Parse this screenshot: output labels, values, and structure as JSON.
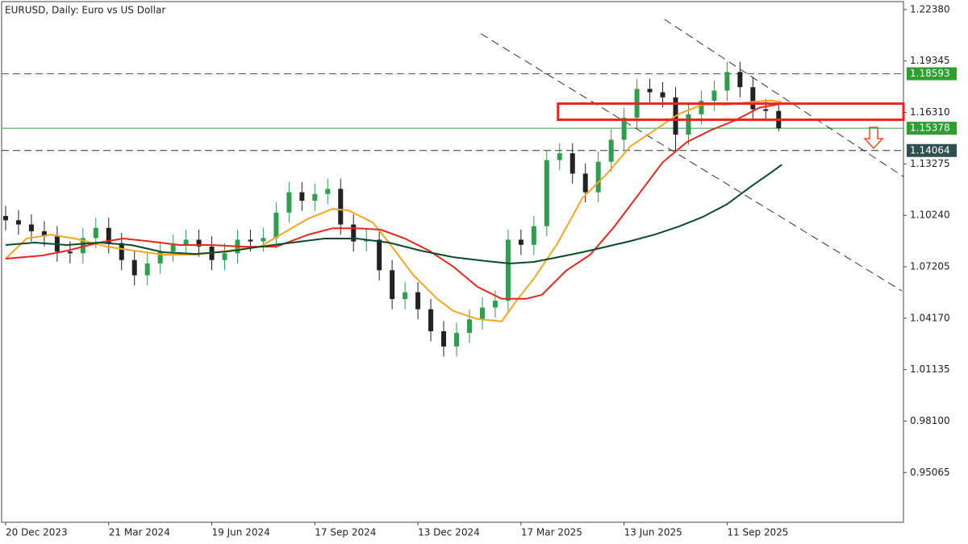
{
  "chart_data": {
    "type": "candlestick",
    "title": "EURUSD, Daily:  Euro vs US Dollar",
    "up_color": "#2e9e4f",
    "down_color": "#222222",
    "x": [
      0,
      8,
      16,
      24,
      32,
      40,
      48,
      56,
      64,
      72,
      80,
      88,
      96,
      104,
      112,
      120,
      128,
      136,
      144,
      152,
      160,
      168,
      176,
      184,
      192,
      200,
      208,
      216,
      224,
      232,
      240,
      248,
      256,
      264,
      272,
      280,
      288,
      296,
      304,
      312,
      320,
      328,
      336,
      344,
      352,
      360,
      368,
      376,
      384,
      392,
      400,
      408,
      416,
      424,
      432,
      440,
      448,
      456,
      464,
      472,
      480
    ],
    "open": [
      1.102,
      1.0995,
      1.097,
      1.093,
      1.09,
      1.081,
      1.08,
      1.089,
      1.095,
      1.086,
      1.076,
      1.067,
      1.074,
      1.081,
      1.085,
      1.088,
      1.084,
      1.076,
      1.08,
      1.088,
      1.087,
      1.089,
      1.104,
      1.116,
      1.111,
      1.115,
      1.118,
      1.097,
      1.087,
      1.088,
      1.07,
      1.053,
      1.057,
      1.047,
      1.034,
      1.025,
      1.033,
      1.041,
      1.048,
      1.052,
      1.088,
      1.085,
      1.096,
      1.135,
      1.139,
      1.127,
      1.116,
      1.134,
      1.147,
      1.16,
      1.177,
      1.175,
      1.172,
      1.15,
      1.162,
      1.17,
      1.176,
      1.187,
      1.178,
      1.165,
      1.164
    ],
    "high": [
      1.108,
      1.1055,
      1.103,
      1.099,
      1.096,
      1.087,
      1.095,
      1.101,
      1.101,
      1.092,
      1.082,
      1.08,
      1.087,
      1.091,
      1.094,
      1.094,
      1.09,
      1.086,
      1.094,
      1.094,
      1.095,
      1.11,
      1.122,
      1.122,
      1.121,
      1.124,
      1.124,
      1.103,
      1.094,
      1.094,
      1.076,
      1.063,
      1.063,
      1.053,
      1.04,
      1.039,
      1.047,
      1.054,
      1.058,
      1.094,
      1.094,
      1.102,
      1.141,
      1.145,
      1.145,
      1.133,
      1.14,
      1.153,
      1.166,
      1.183,
      1.183,
      1.181,
      1.178,
      1.168,
      1.176,
      1.182,
      1.193,
      1.193,
      1.184,
      1.171,
      1.17
    ],
    "low": [
      1.0935,
      1.091,
      1.087,
      1.084,
      1.075,
      1.074,
      1.074,
      1.083,
      1.08,
      1.07,
      1.061,
      1.061,
      1.068,
      1.075,
      1.079,
      1.078,
      1.07,
      1.07,
      1.074,
      1.081,
      1.081,
      1.083,
      1.098,
      1.105,
      1.105,
      1.109,
      1.091,
      1.081,
      1.081,
      1.064,
      1.047,
      1.047,
      1.041,
      1.028,
      1.019,
      1.019,
      1.027,
      1.035,
      1.042,
      1.046,
      1.079,
      1.079,
      1.09,
      1.129,
      1.121,
      1.11,
      1.11,
      1.128,
      1.141,
      1.154,
      1.169,
      1.166,
      1.14,
      1.144,
      1.156,
      1.164,
      1.17,
      1.172,
      1.159,
      1.158,
      1.152
    ],
    "close": [
      1.0995,
      1.097,
      1.093,
      1.09,
      1.081,
      1.08,
      1.089,
      1.095,
      1.086,
      1.076,
      1.067,
      1.074,
      1.081,
      1.085,
      1.088,
      1.084,
      1.076,
      1.08,
      1.088,
      1.087,
      1.089,
      1.104,
      1.116,
      1.111,
      1.115,
      1.118,
      1.097,
      1.087,
      1.088,
      1.07,
      1.053,
      1.057,
      1.047,
      1.034,
      1.025,
      1.033,
      1.041,
      1.048,
      1.052,
      1.088,
      1.085,
      1.096,
      1.135,
      1.139,
      1.127,
      1.116,
      1.134,
      1.147,
      1.16,
      1.177,
      1.175,
      1.172,
      1.15,
      1.162,
      1.17,
      1.176,
      1.187,
      1.178,
      1.165,
      1.164,
      1.1538
    ],
    "moving_averages": [
      {
        "color": "#f5a623",
        "x": [
          0,
          13,
          28,
          43,
          63,
          80,
          98,
          118,
          138,
          158,
          175,
          188,
          203,
          213,
          228,
          238,
          253,
          268,
          278,
          293,
          308,
          318,
          328,
          343,
          358,
          373,
          388,
          403,
          418,
          433,
          448,
          463,
          475,
          482
        ],
        "values": [
          1.0768,
          1.0887,
          1.091,
          1.0887,
          1.0839,
          1.0815,
          1.0792,
          1.0792,
          1.0815,
          1.0839,
          1.0934,
          1.1005,
          1.1062,
          1.1053,
          1.0981,
          1.0863,
          1.0673,
          1.0531,
          1.046,
          1.0412,
          1.0398,
          1.0531,
          1.065,
          1.0863,
          1.1124,
          1.1266,
          1.1432,
          1.1527,
          1.1622,
          1.1678,
          1.1678,
          1.1693,
          1.1702,
          1.1693
        ]
      },
      {
        "color": "#e8261e",
        "x": [
          0,
          23,
          38,
          58,
          73,
          88,
          108,
          128,
          148,
          168,
          188,
          203,
          218,
          233,
          248,
          263,
          278,
          293,
          308,
          323,
          333,
          348,
          363,
          378,
          393,
          408,
          423,
          438,
          453,
          468,
          482
        ],
        "values": [
          1.0768,
          1.0787,
          1.0815,
          1.0863,
          1.0887,
          1.0872,
          1.0849,
          1.0849,
          1.0839,
          1.0839,
          1.091,
          1.0948,
          1.0948,
          1.0939,
          1.0887,
          1.0815,
          1.0721,
          1.0602,
          1.0531,
          1.0531,
          1.0555,
          1.0697,
          1.0792,
          1.0958,
          1.1147,
          1.1337,
          1.1456,
          1.1527,
          1.1584,
          1.1659,
          1.1683
        ]
      },
      {
        "color": "#0b4a2a",
        "x": [
          0,
          18,
          38,
          58,
          78,
          98,
          118,
          138,
          158,
          178,
          198,
          218,
          238,
          258,
          278,
          298,
          313,
          328,
          343,
          358,
          373,
          388,
          403,
          418,
          433,
          448,
          463,
          475,
          482
        ],
        "values": [
          1.0849,
          1.0863,
          1.0849,
          1.0863,
          1.0849,
          1.0806,
          1.0796,
          1.0811,
          1.0839,
          1.0863,
          1.0887,
          1.0887,
          1.0863,
          1.0815,
          1.0777,
          1.0754,
          1.074,
          1.0749,
          1.0777,
          1.0806,
          1.0839,
          1.0872,
          1.091,
          1.0958,
          1.1015,
          1.109,
          1.1195,
          1.1275,
          1.1323
        ]
      }
    ],
    "levels": [
      {
        "value": 1.18593,
        "color": "#2e7d32",
        "dashed": true,
        "badge": "#2e9e2e"
      },
      {
        "value": 1.15378,
        "color": "#2e9e4f",
        "dashed": false,
        "badge": "#2e9e2e"
      },
      {
        "value": 1.14064,
        "color": "#333333",
        "dashed": true,
        "badge": "#2f4f4f"
      }
    ],
    "zone": {
      "x_start": 343,
      "top": 1.1683,
      "bottom": 1.1588,
      "color": "#e8261e"
    },
    "trendlines": [
      {
        "x": [
          295,
          556.5
        ],
        "y": [
          1.2096,
          1.0578
        ]
      },
      {
        "x": [
          409,
          557.5
        ],
        "y": [
          1.2181,
          1.1252
        ]
      }
    ],
    "xlim": [
      -2.5,
      557.5
    ],
    "ylim": [
      0.9213,
      1.2285
    ],
    "xticks": [
      {
        "value": 0,
        "label": "20 Dec 2023"
      },
      {
        "value": 64,
        "label": "21 Mar 2024"
      },
      {
        "value": 128,
        "label": "19 Jun 2024"
      },
      {
        "value": 192,
        "label": "17 Sep 2024"
      },
      {
        "value": 256,
        "label": "13 Dec 2024"
      },
      {
        "value": 320,
        "label": "17 Mar 2025"
      },
      {
        "value": 384,
        "label": "13 Jun 2025"
      },
      {
        "value": 448,
        "label": "11 Sep 2025"
      }
    ],
    "yticks": [
      {
        "value": 1.2238,
        "label": "1.22380"
      },
      {
        "value": 1.19345,
        "label": "1.19345"
      },
      {
        "value": 1.1631,
        "label": "1.16310"
      },
      {
        "value": 1.13275,
        "label": "1.13275"
      },
      {
        "value": 1.1024,
        "label": "1.10240"
      },
      {
        "value": 1.07205,
        "label": "1.07205"
      },
      {
        "value": 1.0417,
        "label": "1.04170"
      },
      {
        "value": 1.01135,
        "label": "1.01135"
      },
      {
        "value": 0.981,
        "label": "0.98100"
      },
      {
        "value": 0.95065,
        "label": "0.95065"
      }
    ]
  }
}
